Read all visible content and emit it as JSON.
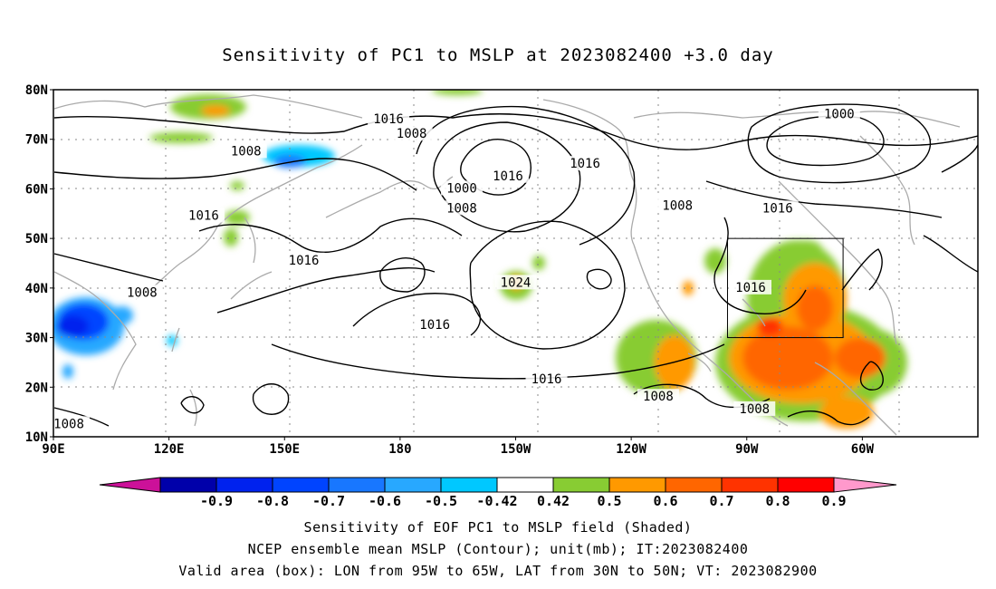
{
  "title": "Sensitivity of PC1 to MSLP at 2023082400 +3.0 day",
  "map": {
    "lat_labels": [
      "80N",
      "70N",
      "60N",
      "50N",
      "40N",
      "30N",
      "20N",
      "10N"
    ],
    "lon_labels": [
      "90E",
      "120E",
      "150E",
      "180",
      "150W",
      "120W",
      "90W",
      "60W"
    ],
    "contour_labels": [
      {
        "text": "1016",
        "lon": 177,
        "lat": 74
      },
      {
        "text": "1008",
        "lon": -177,
        "lat": 71
      },
      {
        "text": "1000",
        "lon": -66,
        "lat": 75
      },
      {
        "text": "1008",
        "lon": 140,
        "lat": 67.5
      },
      {
        "text": "1016",
        "lon": -132,
        "lat": 65
      },
      {
        "text": "1016",
        "lon": -152,
        "lat": 62.5
      },
      {
        "text": "1000",
        "lon": -164,
        "lat": 60
      },
      {
        "text": "1008",
        "lon": -164,
        "lat": 56
      },
      {
        "text": "1008",
        "lon": -108,
        "lat": 56.5
      },
      {
        "text": "1016",
        "lon": -82,
        "lat": 56
      },
      {
        "text": "1016",
        "lon": 129,
        "lat": 54.5
      },
      {
        "text": "1016",
        "lon": 155,
        "lat": 45.5
      },
      {
        "text": "1024",
        "lon": -150,
        "lat": 41
      },
      {
        "text": "1016",
        "lon": -89,
        "lat": 40
      },
      {
        "text": "1008",
        "lon": 113,
        "lat": 39
      },
      {
        "text": "1016",
        "lon": -171,
        "lat": 32.5
      },
      {
        "text": "1016",
        "lon": -142,
        "lat": 21.5
      },
      {
        "text": "1008",
        "lon": -113,
        "lat": 18
      },
      {
        "text": "1008",
        "lon": -88,
        "lat": 15.5
      },
      {
        "text": "1008",
        "lon": 94,
        "lat": 12.5
      }
    ],
    "valid_box": {
      "lon_min": -95,
      "lon_max": -65,
      "lat_min": 30,
      "lat_max": 50
    }
  },
  "colorbar": {
    "labels": [
      "-0.9",
      "-0.8",
      "-0.7",
      "-0.6",
      "-0.5",
      "-0.42",
      "0.42",
      "0.5",
      "0.6",
      "0.7",
      "0.8",
      "0.9"
    ],
    "colors": [
      "#0000aa",
      "#0022ee",
      "#0044ff",
      "#1877ff",
      "#28a8ff",
      "#00c8ff",
      "#ffffff",
      "#88cc33",
      "#ff9900",
      "#ff6600",
      "#ff3300",
      "#ff0000"
    ],
    "under_color": "#cc1199",
    "over_color": "#ff99cc"
  },
  "captions": [
    "Sensitivity of EOF PC1 to MSLP field (Shaded)",
    "NCEP ensemble mean MSLP (Contour); unit(mb); IT:2023082400",
    "Valid area (box): LON from 95W to 65W, LAT from 30N to 50N; VT: 2023082900"
  ]
}
